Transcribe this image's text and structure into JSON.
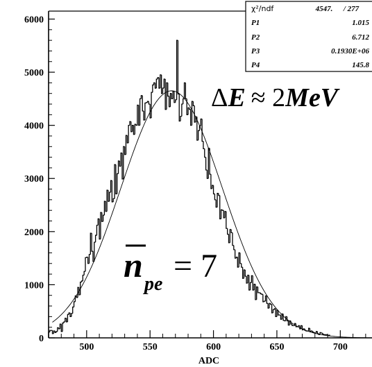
{
  "chart_data": {
    "type": "histogram",
    "xlabel": "ADC",
    "ylabel": "",
    "xlim": [
      470,
      725
    ],
    "ylim": [
      0,
      6150
    ],
    "xticks": [
      "500",
      "550",
      "600",
      "650",
      "700"
    ],
    "yticks": [
      "0",
      "1000",
      "2000",
      "3000",
      "4000",
      "5000",
      "6000"
    ],
    "bins": {
      "x_start": 470,
      "bin_width": 1,
      "values": [
        110,
        140,
        140,
        80,
        130,
        100,
        120,
        190,
        170,
        260,
        120,
        280,
        300,
        370,
        300,
        440,
        470,
        400,
        460,
        580,
        680,
        790,
        760,
        950,
        810,
        1050,
        1070,
        1180,
        1250,
        1510,
        1520,
        1400,
        1570,
        1970,
        1630,
        1440,
        1800,
        1930,
        2120,
        2240,
        1860,
        2360,
        2190,
        2310,
        2570,
        2380,
        2780,
        2570,
        2740,
        2960,
        2560,
        2620,
        3260,
        2710,
        3090,
        3330,
        3230,
        3480,
        2990,
        3600,
        3450,
        3810,
        3670,
        4000,
        4070,
        3880,
        4000,
        3830,
        4020,
        4000,
        4380,
        4000,
        4500,
        4560,
        4270,
        4100,
        4420,
        4430,
        4450,
        4400,
        4140,
        4620,
        4760,
        4800,
        4700,
        4870,
        4900,
        4700,
        4950,
        4600,
        4700,
        4870,
        4300,
        4800,
        4550,
        4350,
        4600,
        4500,
        4640,
        4430,
        4480,
        5600,
        4590,
        4080,
        4170,
        4400,
        4500,
        4800,
        4500,
        4200,
        4330,
        4300,
        4000,
        4450,
        4370,
        4060,
        4160,
        3720,
        3900,
        3990,
        4120,
        3700,
        3560,
        3400,
        3160,
        3000,
        3570,
        3080,
        2810,
        2870,
        2710,
        2600,
        2460,
        2720,
        2680,
        2240,
        2410,
        2400,
        2260,
        2380,
        2060,
        1950,
        1790,
        2040,
        1980,
        1740,
        1660,
        1500,
        1520,
        1330,
        1600,
        1400,
        1330,
        1120,
        1280,
        1160,
        1030,
        1180,
        900,
        1040,
        1170,
        900,
        1010,
        720,
        960,
        850,
        850,
        830,
        820,
        680,
        690,
        790,
        650,
        560,
        650,
        630,
        470,
        530,
        550,
        400,
        520,
        430,
        430,
        350,
        450,
        330,
        320,
        400,
        320,
        240,
        320,
        260,
        230,
        230,
        270,
        210,
        210,
        230,
        170,
        230,
        150,
        170,
        140,
        130,
        130,
        180,
        120,
        130,
        110,
        100,
        90,
        120,
        80,
        60,
        100,
        90,
        70,
        60,
        60,
        60,
        40,
        50
      ]
    },
    "fit": {
      "function": "gaussian",
      "amplitude": 4650,
      "mean": 567,
      "sigma": 40
    },
    "stats": {
      "chi2_label": "χ²/ndf",
      "chi2_value": "4547.",
      "ndf": "/  277",
      "rows": [
        {
          "name": "P1",
          "value": "1.015"
        },
        {
          "name": "P2",
          "value": "6.712"
        },
        {
          "name": "P3",
          "value": "0.1930E+06"
        },
        {
          "name": "P4",
          "value": "145.8"
        }
      ]
    },
    "annotations": {
      "energy": {
        "prefix": "Δ",
        "symbol": "E",
        "relation": "≈ 2",
        "unit": "MeV"
      },
      "photoelectrons": {
        "symbol": "n",
        "subscript": "pe",
        "relation": "= 7"
      }
    },
    "grid": false,
    "legend": "none"
  }
}
